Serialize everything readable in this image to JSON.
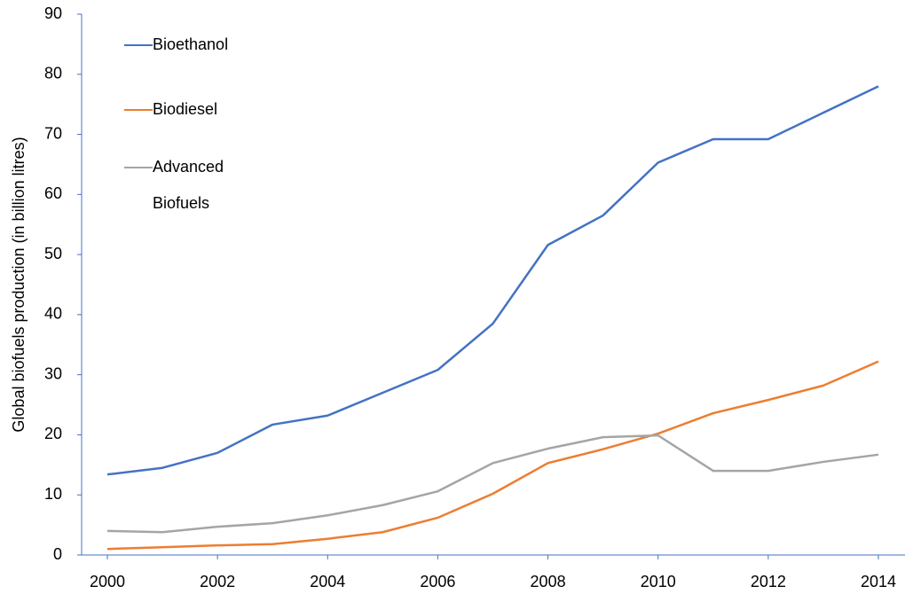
{
  "chart_data": {
    "type": "line",
    "y_label": "Global biofuels production (in billion litres)",
    "x": [
      2000,
      2001,
      2002,
      2003,
      2004,
      2005,
      2006,
      2007,
      2008,
      2009,
      2010,
      2011,
      2012,
      2013,
      2014
    ],
    "series": [
      {
        "name": "Bioethanol",
        "color": "#4472c4",
        "values": [
          13.4,
          14.5,
          17.0,
          21.7,
          23.2,
          27.0,
          30.8,
          38.5,
          51.6,
          56.5,
          65.3,
          69.2,
          69.2,
          73.6,
          78.0
        ]
      },
      {
        "name": "Biodiesel",
        "color": "#ed7d31",
        "values": [
          1.0,
          1.3,
          1.6,
          1.8,
          2.7,
          3.8,
          6.2,
          10.2,
          15.3,
          17.6,
          20.2,
          23.6,
          25.8,
          28.2,
          32.2
        ]
      },
      {
        "name": "Advanced Biofuels",
        "color": "#a5a5a5",
        "values": [
          4.0,
          3.8,
          4.7,
          5.3,
          6.6,
          8.3,
          10.6,
          15.3,
          17.7,
          19.6,
          19.9,
          14.0,
          14.0,
          15.5,
          16.7
        ]
      }
    ],
    "xlim": [
      2000,
      2014
    ],
    "xticks": [
      2000,
      2002,
      2004,
      2006,
      2008,
      2010,
      2012,
      2014
    ],
    "ylim": [
      0,
      90
    ],
    "yticks": [
      0,
      10,
      20,
      30,
      40,
      50,
      60,
      70,
      80,
      90
    ],
    "grid": false,
    "legend": "top-left"
  }
}
